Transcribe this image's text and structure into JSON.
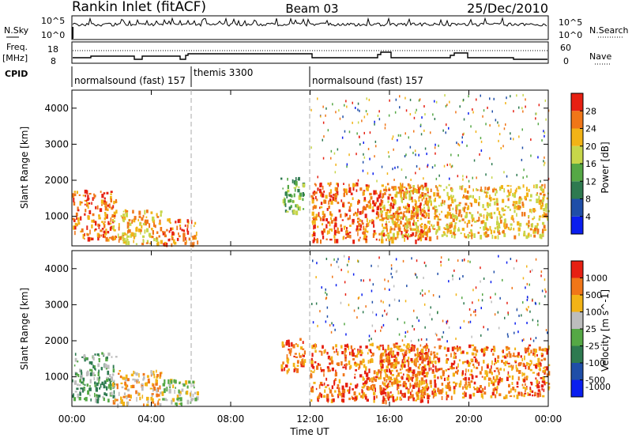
{
  "header": {
    "title": "Rankin Inlet (fitACF)",
    "beam": "Beam 03",
    "date": "25/Dec/2010"
  },
  "top_panels": {
    "nsky_label": "N.Sky",
    "nsearch_label": "N.Search",
    "noise_ticks": [
      "10^5",
      "10^0"
    ],
    "freq_label": "Freq.",
    "freq_unit": "[MHz]",
    "freq_ticks": [
      "18",
      "8"
    ],
    "nave_label": "Nave",
    "nave_ticks": [
      "60",
      "0"
    ],
    "cpid_label": "CPID",
    "cpid_segments": [
      {
        "label": "normalsound (fast) 157",
        "start_hour": 0
      },
      {
        "label": "themis 3300",
        "start_hour": 6
      },
      {
        "label": "normalsound (fast) 157",
        "start_hour": 12
      }
    ]
  },
  "axes": {
    "ylabel": "Slant Range [km]",
    "xlabel": "Time UT",
    "xticks": [
      "00:00",
      "04:00",
      "08:00",
      "12:00",
      "16:00",
      "20:00",
      "00:00"
    ],
    "yticks": [
      "1000",
      "2000",
      "3000",
      "4000"
    ]
  },
  "colors": {
    "power_scale": [
      "#0a1eef",
      "#1f4ea8",
      "#2e7a50",
      "#55a845",
      "#c7d64a",
      "#f2b316",
      "#f07618",
      "#e62012"
    ],
    "velocity_scale": [
      "#0a1eef",
      "#1f4ea8",
      "#2e7a50",
      "#55a845",
      "#bdbdbd",
      "#f2b316",
      "#f07618",
      "#e62012"
    ]
  },
  "chart_data": [
    {
      "type": "heatmap",
      "panel": "power",
      "colorbar_label": "Power [dB]",
      "colorbar_ticks": [
        "28",
        "24",
        "20",
        "16",
        "12",
        "8",
        "4"
      ],
      "x_range_hours": [
        0,
        24
      ],
      "y_range_km": [
        180,
        4500
      ],
      "clusters": [
        {
          "t0": 0,
          "t1": 2.2,
          "r0": 380,
          "r1": 1750,
          "level": 6
        },
        {
          "t0": 2,
          "t1": 4.5,
          "r0": 250,
          "r1": 1200,
          "level": 5
        },
        {
          "t0": 4.5,
          "t1": 6.3,
          "r0": 250,
          "r1": 950,
          "level": 6
        },
        {
          "t0": 10.5,
          "t1": 11.7,
          "r0": 1150,
          "r1": 2100,
          "level": 3
        },
        {
          "t0": 12,
          "t1": 18,
          "r0": 350,
          "r1": 1950,
          "level": 6
        },
        {
          "t0": 15.5,
          "t1": 24,
          "r0": 450,
          "r1": 1900,
          "level": 5
        }
      ]
    },
    {
      "type": "heatmap",
      "panel": "velocity",
      "colorbar_label": "Velocity [m s^-1]",
      "colorbar_ticks": [
        "1000",
        "500",
        "100",
        "25",
        "-25",
        "-100",
        "-500",
        "-1000"
      ],
      "x_range_hours": [
        0,
        24
      ],
      "y_range_km": [
        180,
        4500
      ],
      "clusters": [
        {
          "t0": 0,
          "t1": 2.2,
          "r0": 380,
          "r1": 1750,
          "level": 3
        },
        {
          "t0": 2,
          "t1": 4.5,
          "r0": 250,
          "r1": 1200,
          "level": 5
        },
        {
          "t0": 4.5,
          "t1": 6.3,
          "r0": 250,
          "r1": 950,
          "level": 4
        },
        {
          "t0": 10.5,
          "t1": 11.7,
          "r0": 1150,
          "r1": 2100,
          "level": 6
        },
        {
          "t0": 12,
          "t1": 18,
          "r0": 350,
          "r1": 1950,
          "level": 6
        },
        {
          "t0": 15.5,
          "t1": 24,
          "r0": 450,
          "r1": 1900,
          "level": 6
        }
      ]
    }
  ]
}
